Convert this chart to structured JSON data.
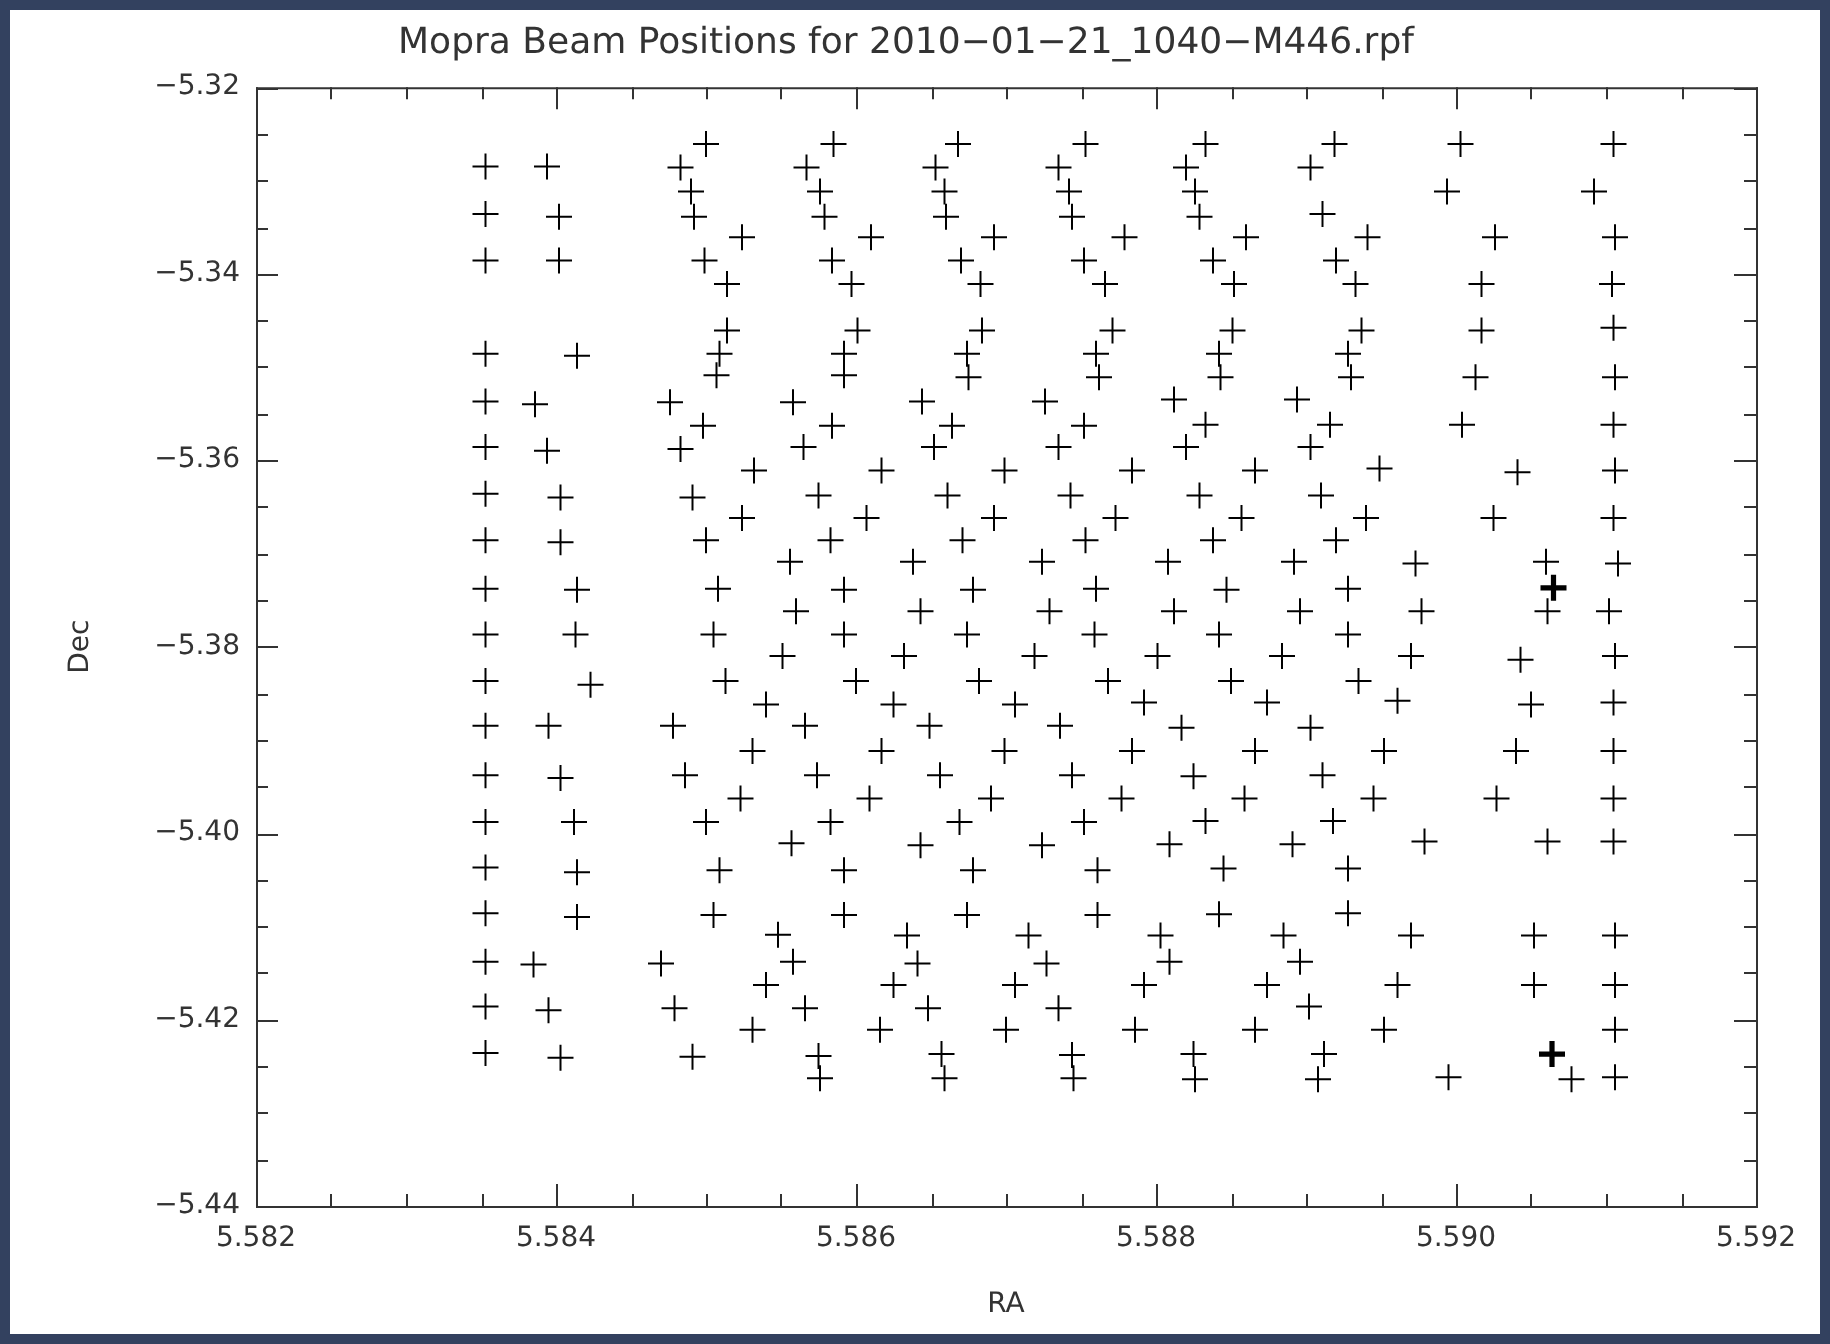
{
  "chart_data": {
    "type": "scatter",
    "title": "Mopra Beam Positions for 2010−01−21_1040−M446.rpf",
    "xlabel": "RA",
    "ylabel": "Dec",
    "marker": "cross",
    "xlim": [
      5.582,
      5.592
    ],
    "ylim": [
      -5.44,
      -5.32
    ],
    "xticks": [
      5.582,
      {
        "value": 5.5825,
        "label": null
      },
      {
        "value": 5.583,
        "label": null
      },
      {
        "value": 5.5835,
        "label": null
      },
      5.584,
      {
        "value": 5.5845,
        "label": null
      },
      {
        "value": 5.585,
        "label": null
      },
      {
        "value": 5.5855,
        "label": null
      },
      5.586,
      {
        "value": 5.5865,
        "label": null
      },
      {
        "value": 5.587,
        "label": null
      },
      {
        "value": 5.5875,
        "label": null
      },
      5.588,
      {
        "value": 5.5885,
        "label": null
      },
      {
        "value": 5.589,
        "label": null
      },
      {
        "value": 5.5895,
        "label": null
      },
      {
        "value": 5.59,
        "label": "5.590"
      },
      {
        "value": 5.5905,
        "label": null
      },
      {
        "value": 5.591,
        "label": null
      },
      {
        "value": 5.5915,
        "label": null
      },
      5.592
    ],
    "yticks": [
      {
        "value": -5.44,
        "label": "−5.44"
      },
      {
        "value": -5.435,
        "label": null
      },
      {
        "value": -5.43,
        "label": null
      },
      {
        "value": -5.425,
        "label": null
      },
      {
        "value": -5.42,
        "label": "−5.42"
      },
      {
        "value": -5.415,
        "label": null
      },
      {
        "value": -5.41,
        "label": null
      },
      {
        "value": -5.405,
        "label": null
      },
      {
        "value": -5.4,
        "label": "−5.40"
      },
      {
        "value": -5.395,
        "label": null
      },
      {
        "value": -5.39,
        "label": null
      },
      {
        "value": -5.385,
        "label": null
      },
      {
        "value": -5.38,
        "label": "−5.38"
      },
      {
        "value": -5.375,
        "label": null
      },
      {
        "value": -5.37,
        "label": null
      },
      {
        "value": -5.365,
        "label": null
      },
      {
        "value": -5.36,
        "label": "−5.36"
      },
      {
        "value": -5.355,
        "label": null
      },
      {
        "value": -5.35,
        "label": null
      },
      {
        "value": -5.345,
        "label": null
      },
      {
        "value": -5.34,
        "label": "−5.34"
      },
      {
        "value": -5.335,
        "label": null
      },
      {
        "value": -5.33,
        "label": null
      },
      {
        "value": -5.325,
        "label": null
      },
      {
        "value": -5.32,
        "label": "−5.32"
      }
    ],
    "series": [
      {
        "color": "#000000",
        "x": [
          5.58353,
          5.58353,
          5.58353,
          5.58353,
          5.58353,
          5.58353,
          5.58353,
          5.58353,
          5.58353,
          5.58353,
          5.58353,
          5.58353,
          5.58353,
          5.58353,
          5.58353,
          5.58353,
          5.58353,
          5.58353,
          5.58353,
          5.58394,
          5.58402,
          5.58402,
          5.58414,
          5.58386,
          5.58394,
          5.58403,
          5.58403,
          5.58414,
          5.58413,
          5.58423,
          5.58395,
          5.58403,
          5.58412,
          5.58414,
          5.58414,
          5.58385,
          5.58395,
          5.58403,
          5.585,
          5.58483,
          5.5849,
          5.58492,
          5.58524,
          5.58499,
          5.58514,
          5.58514,
          5.58509,
          5.58507,
          5.58476,
          5.58498,
          5.58483,
          5.58532,
          5.58491,
          5.58524,
          5.585,
          5.58556,
          5.58508,
          5.5856,
          5.58505,
          5.58551,
          5.58585,
          5.58567,
          5.58576,
          5.58579,
          5.5861,
          5.58584,
          5.58597,
          5.58601,
          5.58592,
          5.58592,
          5.58558,
          5.58584,
          5.58565,
          5.58617,
          5.58575,
          5.58607,
          5.58583,
          5.58638,
          5.58592,
          5.58643,
          5.58592,
          5.58632,
          5.58668,
          5.58653,
          5.58659,
          5.5866,
          5.58692,
          5.5867,
          5.58683,
          5.58684,
          5.58674,
          5.58675,
          5.58644,
          5.58664,
          5.58652,
          5.58699,
          5.58661,
          5.58692,
          5.58671,
          5.58724,
          5.58678,
          5.58729,
          5.58674,
          5.58719,
          5.58753,
          5.58735,
          5.58742,
          5.58744,
          5.58779,
          5.58752,
          5.58766,
          5.58771,
          5.5876,
          5.58762,
          5.58726,
          5.58752,
          5.58735,
          5.58784,
          5.58743,
          5.58773,
          5.58753,
          5.58808,
          5.5876,
          5.58812,
          5.58759,
          5.58801,
          5.58833,
          5.5882,
          5.58826,
          5.58829,
          5.5886,
          5.58838,
          5.58852,
          5.58851,
          5.58842,
          5.58843,
          5.58812,
          5.58833,
          5.5882,
          5.58866,
          5.58829,
          5.58857,
          5.58838,
          5.58892,
          5.58847,
          5.58896,
          5.58842,
          5.58884,
          5.58919,
          5.58903,
          5.58911,
          5.58941,
          5.5892,
          5.58933,
          5.58937,
          5.58928,
          5.5893,
          5.58894,
          5.58916,
          5.58903,
          5.58949,
          5.5891,
          5.5894,
          5.5892,
          5.58973,
          5.58928,
          5.58977,
          5.58928,
          5.5897,
          5.59003,
          5.58994,
          5.59026,
          5.59017,
          5.59017,
          5.59013,
          5.59004,
          5.59041,
          5.59025,
          5.5906,
          5.59061,
          5.59043,
          5.59105,
          5.59092,
          5.59106,
          5.59104,
          5.59105,
          5.59106,
          5.59105,
          5.59106,
          5.59105,
          5.59108,
          5.59102,
          5.59106,
          5.58513,
          5.586,
          5.58682,
          5.58768,
          5.5854,
          5.58625,
          5.58706,
          5.58478,
          5.58566,
          5.58649,
          5.58736,
          5.58531,
          5.58617,
          5.58699,
          5.58486,
          5.58574,
          5.58656,
          5.58744,
          5.58523,
          5.58609,
          5.5869,
          5.585,
          5.58583,
          5.58669,
          5.58752,
          5.58557,
          5.58643,
          5.58724,
          5.58509,
          5.58592,
          5.58678,
          5.58761,
          5.58505,
          5.58592,
          5.58674,
          5.58761,
          5.58548,
          5.58634,
          5.58715,
          5.58558,
          5.5847,
          5.58641,
          5.58727,
          5.5854,
          5.58625,
          5.58706,
          5.58479,
          5.58566,
          5.58648,
          5.58735,
          5.58531,
          5.58616,
          5.587,
          5.58491,
          5.58575,
          5.58657,
          5.58744,
          5.58576,
          5.58659,
          5.58745,
          5.58792,
          5.5885,
          5.58874,
          5.58935,
          5.58961,
          5.58817,
          5.58903,
          5.58784,
          5.58866,
          5.58952,
          5.5904,
          5.59105,
          5.58825,
          5.58911,
          5.58777,
          5.58859,
          5.58945,
          5.59027,
          5.59105,
          5.58833,
          5.58918,
          5.58809,
          5.58891,
          5.58979,
          5.59061,
          5.59105,
          5.58845,
          5.58928,
          5.58842,
          5.58928,
          5.58803,
          5.58885,
          5.5897,
          5.59052,
          5.59106,
          5.58809,
          5.58896,
          5.58792,
          5.58874,
          5.58961,
          5.59052,
          5.59106,
          5.58902,
          5.58786,
          5.58866,
          5.58952,
          5.59106,
          5.58825,
          5.58912,
          5.58826,
          5.58908,
          5.58995,
          5.59077,
          5.59106,
          5.59105,
          5.5905
        ],
        "values": [
          -5.3285,
          -5.3336,
          -5.3386,
          -5.3486,
          -5.3537,
          -5.3586,
          -5.3636,
          -5.3686,
          -5.3738,
          -5.3787,
          -5.3837,
          -5.3885,
          -5.3938,
          -5.3988,
          -5.4037,
          -5.4086,
          -5.4138,
          -5.4186,
          -5.4236,
          -5.3285,
          -5.3339,
          -5.3386,
          -5.3488,
          -5.354,
          -5.359,
          -5.364,
          -5.3688,
          -5.3739,
          -5.3787,
          -5.3841,
          -5.3885,
          -5.3941,
          -5.3988,
          -5.4042,
          -5.409,
          -5.4141,
          -5.419,
          -5.4241,
          -5.3261,
          -5.3286,
          -5.3312,
          -5.3339,
          -5.3361,
          -5.3386,
          -5.3411,
          -5.3461,
          -5.3486,
          -5.3509,
          -5.3538,
          -5.3563,
          -5.3588,
          -5.3611,
          -5.364,
          -5.3662,
          -5.3686,
          -5.3709,
          -5.3738,
          -5.3762,
          -5.3787,
          -5.381,
          -5.3261,
          -5.3286,
          -5.3312,
          -5.3339,
          -5.3361,
          -5.3386,
          -5.3411,
          -5.3461,
          -5.3486,
          -5.3509,
          -5.3538,
          -5.3563,
          -5.3586,
          -5.3611,
          -5.3638,
          -5.3662,
          -5.3686,
          -5.3709,
          -5.3739,
          -5.3762,
          -5.3787,
          -5.381,
          -5.3261,
          -5.3286,
          -5.3312,
          -5.3339,
          -5.3361,
          -5.3386,
          -5.3411,
          -5.3461,
          -5.3486,
          -5.3511,
          -5.3537,
          -5.3563,
          -5.3586,
          -5.3611,
          -5.3638,
          -5.3662,
          -5.3686,
          -5.3709,
          -5.3739,
          -5.3762,
          -5.3787,
          -5.381,
          -5.3261,
          -5.3286,
          -5.3312,
          -5.3339,
          -5.3361,
          -5.3386,
          -5.3411,
          -5.3461,
          -5.3486,
          -5.3511,
          -5.3537,
          -5.3563,
          -5.3586,
          -5.3611,
          -5.3638,
          -5.3662,
          -5.3686,
          -5.3709,
          -5.3738,
          -5.3762,
          -5.3787,
          -5.381,
          -5.3261,
          -5.3286,
          -5.3312,
          -5.3339,
          -5.3361,
          -5.3386,
          -5.3411,
          -5.3461,
          -5.3486,
          -5.3511,
          -5.3535,
          -5.3562,
          -5.3586,
          -5.3611,
          -5.3638,
          -5.3662,
          -5.3686,
          -5.3709,
          -5.3739,
          -5.3762,
          -5.3787,
          -5.381,
          -5.3261,
          -5.3286,
          -5.3336,
          -5.3361,
          -5.3386,
          -5.3411,
          -5.3461,
          -5.3486,
          -5.3511,
          -5.3535,
          -5.3562,
          -5.3586,
          -5.3609,
          -5.3638,
          -5.3662,
          -5.3686,
          -5.3711,
          -5.3738,
          -5.3762,
          -5.3787,
          -5.381,
          -5.3261,
          -5.3312,
          -5.3361,
          -5.3411,
          -5.3461,
          -5.3511,
          -5.3562,
          -5.3613,
          -5.3662,
          -5.3709,
          -5.3762,
          -5.3814,
          -5.3261,
          -5.3312,
          -5.3361,
          -5.3411,
          -5.3458,
          -5.3511,
          -5.3562,
          -5.3611,
          -5.3662,
          -5.3711,
          -5.3762,
          -5.381,
          -5.3837,
          -5.3837,
          -5.3837,
          -5.3837,
          -5.3862,
          -5.3862,
          -5.3862,
          -5.3885,
          -5.3885,
          -5.3885,
          -5.3885,
          -5.3912,
          -5.3912,
          -5.3912,
          -5.3938,
          -5.3938,
          -5.3938,
          -5.3938,
          -5.3963,
          -5.3963,
          -5.3963,
          -5.3988,
          -5.3988,
          -5.3988,
          -5.3988,
          -5.4011,
          -5.4013,
          -5.4013,
          -5.404,
          -5.404,
          -5.404,
          -5.404,
          -5.4088,
          -5.4088,
          -5.4088,
          -5.4088,
          -5.4109,
          -5.411,
          -5.411,
          -5.4138,
          -5.414,
          -5.414,
          -5.414,
          -5.4163,
          -5.4163,
          -5.4163,
          -5.4188,
          -5.4188,
          -5.4188,
          -5.4188,
          -5.4211,
          -5.4211,
          -5.4211,
          -5.424,
          -5.4239,
          -5.4237,
          -5.4238,
          -5.4263,
          -5.4263,
          -5.4263,
          -5.386,
          -5.3837,
          -5.386,
          -5.3837,
          -5.3858,
          -5.3887,
          -5.3887,
          -5.3912,
          -5.3912,
          -5.3912,
          -5.3912,
          -5.3912,
          -5.3939,
          -5.3938,
          -5.3963,
          -5.3963,
          -5.3963,
          -5.3963,
          -5.3963,
          -5.3987,
          -5.3987,
          -5.4012,
          -5.4012,
          -5.4009,
          -5.4009,
          -5.4009,
          -5.4038,
          -5.4038,
          -5.4087,
          -5.4086,
          -5.411,
          -5.411,
          -5.411,
          -5.411,
          -5.411,
          -5.4138,
          -5.4138,
          -5.4163,
          -5.4163,
          -5.4163,
          -5.4163,
          -5.4163,
          -5.4186,
          -5.4211,
          -5.4211,
          -5.4211,
          -5.4211,
          -5.4237,
          -5.4237,
          -5.4264,
          -5.4264,
          -5.4262,
          -5.4264,
          -5.4262,
          -5.386,
          -5.3862
        ]
      },
      {
        "color": "#000000",
        "x": [
          5.59065,
          5.59064
        ],
        "values": [
          -5.3737,
          -5.4237
        ]
      }
    ]
  }
}
